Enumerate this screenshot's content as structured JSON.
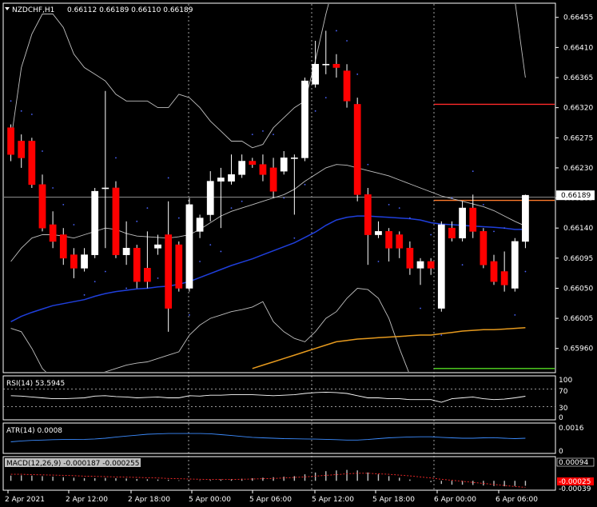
{
  "header": {
    "symbol": "NZDCHF,H1",
    "ohlc": "0.66112 0.66189 0.66110 0.66189"
  },
  "price_axis": {
    "ticks": [
      "0.66455",
      "0.66410",
      "0.66365",
      "0.66320",
      "0.66275",
      "0.66230",
      "0.66185",
      "0.66140",
      "0.66095",
      "0.66050",
      "0.66005",
      "0.65960"
    ],
    "tick_values": [
      0.66455,
      0.6641,
      0.66365,
      0.6632,
      0.66275,
      0.6623,
      0.66185,
      0.6614,
      0.66095,
      0.6605,
      0.66005,
      0.6596
    ],
    "current_price": "0.66189",
    "current_value": 0.66189,
    "range": [
      0.65925,
      0.66475
    ]
  },
  "time_axis": {
    "labels": [
      "2 Apr 2021",
      "2 Apr 12:00",
      "2 Apr 18:00",
      "5 Apr 00:00",
      "5 Apr 06:00",
      "5 Apr 12:00",
      "5 Apr 18:00",
      "6 Apr 00:00",
      "6 Apr 06:00"
    ]
  },
  "indicators": {
    "rsi": {
      "label": "RSI(14) 53.5945",
      "levels": [
        "70",
        "30"
      ],
      "scale": [
        "100",
        "0"
      ]
    },
    "atr": {
      "label": "ATR(14) 0.0008",
      "scale": [
        "0.0016",
        "0"
      ]
    },
    "macd": {
      "label": "MACD(12,26,9) -0.000187 -0.000255",
      "top": "0.00094",
      "signal": "-0.00025",
      "bottom": "-0.00039"
    }
  },
  "colors": {
    "bull": "#ffffff",
    "bear": "#ff0000",
    "bollinger": "#c0c0c0",
    "ma_fast": "#1f3fdc",
    "ma_slow": "#e69a1e",
    "sar": "#4a64ff",
    "resistance": "#ff2a2a",
    "support": "#55dd22",
    "grid": "#c8c8c8"
  },
  "chart_data": {
    "type": "candlestick",
    "candles": [
      {
        "o": 0.6629,
        "c": 0.6625,
        "h": 0.66295,
        "l": 0.6624
      },
      {
        "o": 0.6627,
        "c": 0.66245,
        "h": 0.6628,
        "l": 0.6623
      },
      {
        "o": 0.6627,
        "c": 0.66205,
        "h": 0.66275,
        "l": 0.662
      },
      {
        "o": 0.66205,
        "c": 0.6614,
        "h": 0.6622,
        "l": 0.66135
      },
      {
        "o": 0.66145,
        "c": 0.6612,
        "h": 0.66165,
        "l": 0.6611
      },
      {
        "o": 0.6613,
        "c": 0.66095,
        "h": 0.6614,
        "l": 0.66085
      },
      {
        "o": 0.661,
        "c": 0.6608,
        "h": 0.6611,
        "l": 0.66065
      },
      {
        "o": 0.6608,
        "c": 0.661,
        "h": 0.6611,
        "l": 0.66075
      },
      {
        "o": 0.661,
        "c": 0.66195,
        "h": 0.662,
        "l": 0.66095
      },
      {
        "o": 0.662,
        "c": 0.662,
        "h": 0.66345,
        "l": 0.6611
      },
      {
        "o": 0.662,
        "c": 0.661,
        "h": 0.6621,
        "l": 0.66095
      },
      {
        "o": 0.661,
        "c": 0.6611,
        "h": 0.6615,
        "l": 0.66085
      },
      {
        "o": 0.6611,
        "c": 0.6606,
        "h": 0.66115,
        "l": 0.6605
      },
      {
        "o": 0.6608,
        "c": 0.6606,
        "h": 0.66135,
        "l": 0.6605
      },
      {
        "o": 0.6611,
        "c": 0.66115,
        "h": 0.6613,
        "l": 0.661
      },
      {
        "o": 0.6613,
        "c": 0.6602,
        "h": 0.6618,
        "l": 0.65985
      },
      {
        "o": 0.66115,
        "c": 0.6605,
        "h": 0.6612,
        "l": 0.66045
      },
      {
        "o": 0.6605,
        "c": 0.66175,
        "h": 0.66185,
        "l": 0.66045
      },
      {
        "o": 0.66135,
        "c": 0.66155,
        "h": 0.6616,
        "l": 0.66125
      },
      {
        "o": 0.6616,
        "c": 0.6621,
        "h": 0.66225,
        "l": 0.6615
      },
      {
        "o": 0.6621,
        "c": 0.66215,
        "h": 0.6623,
        "l": 0.6614
      },
      {
        "o": 0.6621,
        "c": 0.6622,
        "h": 0.6625,
        "l": 0.66205
      },
      {
        "o": 0.6622,
        "c": 0.6624,
        "h": 0.6625,
        "l": 0.66215
      },
      {
        "o": 0.6624,
        "c": 0.66235,
        "h": 0.66245,
        "l": 0.6623
      },
      {
        "o": 0.66235,
        "c": 0.6622,
        "h": 0.6625,
        "l": 0.6621
      },
      {
        "o": 0.6623,
        "c": 0.66195,
        "h": 0.66245,
        "l": 0.66185
      },
      {
        "o": 0.66225,
        "c": 0.66245,
        "h": 0.66255,
        "l": 0.6622
      },
      {
        "o": 0.66245,
        "c": 0.66245,
        "h": 0.6625,
        "l": 0.6616
      },
      {
        "o": 0.66245,
        "c": 0.6636,
        "h": 0.66365,
        "l": 0.6624
      },
      {
        "o": 0.66355,
        "c": 0.66385,
        "h": 0.6642,
        "l": 0.6635
      },
      {
        "o": 0.66385,
        "c": 0.66385,
        "h": 0.66435,
        "l": 0.6637
      },
      {
        "o": 0.66385,
        "c": 0.6638,
        "h": 0.664,
        "l": 0.66365
      },
      {
        "o": 0.66375,
        "c": 0.6633,
        "h": 0.66385,
        "l": 0.6632
      },
      {
        "o": 0.66325,
        "c": 0.6619,
        "h": 0.66335,
        "l": 0.6618
      },
      {
        "o": 0.6619,
        "c": 0.6613,
        "h": 0.662,
        "l": 0.66085
      },
      {
        "o": 0.6613,
        "c": 0.66135,
        "h": 0.6615,
        "l": 0.66125
      },
      {
        "o": 0.66135,
        "c": 0.6611,
        "h": 0.6614,
        "l": 0.6609
      },
      {
        "o": 0.6613,
        "c": 0.6611,
        "h": 0.66135,
        "l": 0.66095
      },
      {
        "o": 0.6611,
        "c": 0.6608,
        "h": 0.6612,
        "l": 0.6607
      },
      {
        "o": 0.6608,
        "c": 0.6609,
        "h": 0.66095,
        "l": 0.66055
      },
      {
        "o": 0.6609,
        "c": 0.6608,
        "h": 0.66095,
        "l": 0.6607
      },
      {
        "o": 0.6602,
        "c": 0.66145,
        "h": 0.6615,
        "l": 0.66015
      },
      {
        "o": 0.6614,
        "c": 0.66125,
        "h": 0.6615,
        "l": 0.6612
      },
      {
        "o": 0.66125,
        "c": 0.6617,
        "h": 0.6618,
        "l": 0.6612
      },
      {
        "o": 0.6617,
        "c": 0.66135,
        "h": 0.6619,
        "l": 0.66125
      },
      {
        "o": 0.66135,
        "c": 0.66085,
        "h": 0.6614,
        "l": 0.6608
      },
      {
        "o": 0.6609,
        "c": 0.6606,
        "h": 0.661,
        "l": 0.66055
      },
      {
        "o": 0.66075,
        "c": 0.66055,
        "h": 0.66105,
        "l": 0.66045
      },
      {
        "o": 0.6605,
        "c": 0.6612,
        "h": 0.66125,
        "l": 0.66045
      },
      {
        "o": 0.6612,
        "c": 0.66189,
        "h": 0.6619,
        "l": 0.6611
      }
    ],
    "ma_fast": [
      0.66,
      0.66008,
      0.66014,
      0.66019,
      0.66024,
      0.66027,
      0.6603,
      0.66033,
      0.66038,
      0.66042,
      0.66045,
      0.66047,
      0.66049,
      0.6605,
      0.66052,
      0.66053,
      0.66056,
      0.6606,
      0.66066,
      0.66072,
      0.66078,
      0.66084,
      0.66089,
      0.66094,
      0.661,
      0.66106,
      0.66112,
      0.66118,
      0.66126,
      0.66134,
      0.66144,
      0.66152,
      0.66156,
      0.66158,
      0.66158,
      0.66157,
      0.66156,
      0.66155,
      0.66154,
      0.66152,
      0.66148,
      0.66146,
      0.66145,
      0.66144,
      0.66143,
      0.66142,
      0.66141,
      0.6614,
      0.66138,
      0.66138
    ],
    "ma_slow": [
      null,
      null,
      null,
      null,
      null,
      null,
      null,
      null,
      null,
      null,
      null,
      null,
      null,
      null,
      null,
      null,
      null,
      null,
      null,
      null,
      null,
      null,
      null,
      0.6593,
      0.65935,
      0.6594,
      0.65945,
      0.6595,
      0.65955,
      0.6596,
      0.65965,
      0.6597,
      0.65972,
      0.65974,
      0.65975,
      0.65976,
      0.65977,
      0.65978,
      0.65979,
      0.6598,
      0.6598,
      0.65982,
      0.65984,
      0.65986,
      0.65987,
      0.65988,
      0.65988,
      0.65989,
      0.6599,
      0.65991
    ],
    "bb_upper": [
      0.6627,
      0.6638,
      0.6643,
      0.6646,
      0.6646,
      0.6644,
      0.664,
      0.6638,
      0.6637,
      0.6636,
      0.6634,
      0.6633,
      0.6633,
      0.6633,
      0.6632,
      0.6632,
      0.6634,
      0.66335,
      0.6632,
      0.663,
      0.66285,
      0.6627,
      0.6627,
      0.6626,
      0.66265,
      0.6629,
      0.66305,
      0.6632,
      0.6633,
      0.6639,
      0.6646,
      0.6652,
      0.6656,
      0.6659,
      0.666,
      0.6661,
      0.6662,
      0.6663,
      0.6664,
      0.66645,
      0.6665,
      0.6666,
      0.6668,
      0.667,
      0.667,
      0.667,
      0.6668,
      0.666,
      0.6648,
      0.66365
    ],
    "bb_mid": [
      0.6609,
      0.6611,
      0.66125,
      0.6613,
      0.6613,
      0.66128,
      0.66125,
      0.6613,
      0.66135,
      0.6614,
      0.66138,
      0.66132,
      0.66128,
      0.66127,
      0.66126,
      0.66125,
      0.66127,
      0.6613,
      0.66138,
      0.66148,
      0.66158,
      0.66165,
      0.6617,
      0.66175,
      0.6618,
      0.66185,
      0.6619,
      0.66198,
      0.6621,
      0.6622,
      0.6623,
      0.66235,
      0.66234,
      0.6623,
      0.66226,
      0.66222,
      0.66218,
      0.66212,
      0.66206,
      0.662,
      0.66194,
      0.66188,
      0.66184,
      0.6618,
      0.66176,
      0.66172,
      0.66166,
      0.66158,
      0.6615,
      0.66143
    ],
    "bb_lower": [
      0.6599,
      0.65985,
      0.6596,
      0.6593,
      0.65915,
      0.6591,
      0.65908,
      0.6591,
      0.6592,
      0.65925,
      0.6593,
      0.65935,
      0.65938,
      0.6594,
      0.65945,
      0.6595,
      0.65955,
      0.6598,
      0.65995,
      0.66005,
      0.6601,
      0.66015,
      0.66018,
      0.66022,
      0.6603,
      0.66,
      0.65985,
      0.65975,
      0.6597,
      0.65985,
      0.66005,
      0.66015,
      0.66035,
      0.6605,
      0.66048,
      0.66035,
      0.66005,
      0.6596,
      0.6592,
      0.6588,
      0.6586,
      0.6585,
      0.6583,
      0.658,
      0.6578,
      0.6576,
      0.6575,
      0.65745,
      0.6574,
      0.6574
    ],
    "resistance_level": 0.66325,
    "pivot_level": 0.66185,
    "support_level": 0.6593,
    "rsi": [
      55,
      54,
      52,
      50,
      48,
      48,
      49,
      50,
      54,
      55,
      53,
      52,
      50,
      51,
      52,
      50,
      50,
      55,
      54,
      56,
      56,
      57,
      57,
      57,
      56,
      55,
      56,
      57,
      60,
      62,
      63,
      62,
      60,
      55,
      50,
      50,
      48,
      48,
      46,
      46,
      46,
      40,
      48,
      50,
      52,
      48,
      46,
      47,
      50,
      53.6
    ],
    "atr": [
      0.0006,
      0.00065,
      0.00068,
      0.0007,
      0.00072,
      0.00073,
      0.00073,
      0.00074,
      0.00076,
      0.0008,
      0.00086,
      0.00092,
      0.00097,
      0.00102,
      0.00104,
      0.00106,
      0.00106,
      0.00106,
      0.00106,
      0.00105,
      0.001,
      0.00095,
      0.0009,
      0.00085,
      0.00082,
      0.0008,
      0.00078,
      0.00077,
      0.00076,
      0.00075,
      0.00074,
      0.00072,
      0.0007,
      0.0007,
      0.00073,
      0.00078,
      0.00082,
      0.00085,
      0.00087,
      0.00088,
      0.00088,
      0.00085,
      0.00082,
      0.0008,
      0.0008,
      0.00082,
      0.00083,
      0.0008,
      0.00078,
      0.0008
    ],
    "macd_hist": [
      0.0002,
      0.00021,
      0.0002,
      0.00018,
      0.00016,
      0.00014,
      0.00012,
      0.0001,
      0.0001,
      0.00011,
      0.0001,
      9e-05,
      7e-05,
      6e-05,
      5e-05,
      4e-05,
      2e-05,
      2e-05,
      2e-05,
      3e-05,
      5e-05,
      6e-05,
      8e-05,
      0.0001,
      0.00012,
      0.00014,
      0.00016,
      0.00018,
      0.00025,
      0.00032,
      0.00037,
      0.0004,
      0.00042,
      0.0004,
      0.00032,
      0.00025,
      0.00018,
      0.00012,
      5e-05,
      0.0,
      -5e-05,
      -0.00012,
      -0.00015,
      -0.00015,
      -0.00016,
      -0.00018,
      -0.0002,
      -0.00021,
      -0.0002,
      -0.00019
    ],
    "macd_signal": [
      0.00025,
      0.00025,
      0.00024,
      0.00023,
      0.00022,
      0.00021,
      0.0002,
      0.00018,
      0.00017,
      0.00016,
      0.00015,
      0.00014,
      0.00013,
      0.00012,
      0.00011,
      9e-05,
      8e-05,
      7e-05,
      6e-05,
      5e-05,
      5e-05,
      5e-05,
      6e-05,
      7e-05,
      8e-05,
      9e-05,
      0.00011,
      0.00013,
      0.00015,
      0.00018,
      0.00021,
      0.00024,
      0.00027,
      0.00029,
      0.00029,
      0.00027,
      0.00025,
      0.00022,
      0.00019,
      0.00015,
      0.00011,
      6e-05,
      2e-05,
      -2e-05,
      -6e-05,
      -0.0001,
      -0.00014,
      -0.00018,
      -0.00022,
      -0.00025
    ]
  }
}
